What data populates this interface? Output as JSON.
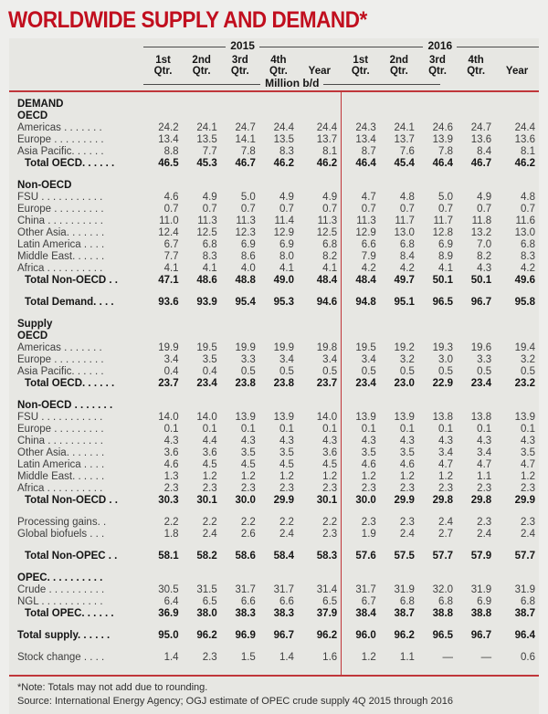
{
  "title": "WORLDWIDE SUPPLY AND DEMAND*",
  "colors": {
    "accent_red_lines": "#c0363a",
    "accent_red_title": "#c10e1e",
    "panel_background": "#e7e7e3",
    "page_background": "#eeeeec"
  },
  "table": {
    "unit": "Million b/d",
    "year_groups": [
      {
        "label": "2015"
      },
      {
        "label": "2016"
      }
    ],
    "col_headers": [
      {
        "top": "1st",
        "bottom": "Qtr."
      },
      {
        "top": "2nd",
        "bottom": "Qtr."
      },
      {
        "top": "3rd",
        "bottom": "Qtr."
      },
      {
        "top": "4th",
        "bottom": "Qtr."
      },
      {
        "top": "",
        "bottom": "Year"
      }
    ],
    "rows": [
      {
        "type": "section",
        "label": "DEMAND",
        "first": true
      },
      {
        "type": "section",
        "label": "OECD"
      },
      {
        "type": "row",
        "label": "Americas . . . . . . .",
        "values": [
          "24.2",
          "24.1",
          "24.7",
          "24.4",
          "24.4",
          "24.3",
          "24.1",
          "24.6",
          "24.7",
          "24.4"
        ]
      },
      {
        "type": "row",
        "label": "Europe . . . . . . . . .",
        "values": [
          "13.4",
          "13.5",
          "14.1",
          "13.5",
          "13.7",
          "13.4",
          "13.7",
          "13.9",
          "13.6",
          "13.6"
        ]
      },
      {
        "type": "row",
        "label": "Asia Pacific. . . . . .",
        "values": [
          "8.8",
          "7.7",
          "7.8",
          "8.3",
          "8.1",
          "8.7",
          "7.6",
          "7.8",
          "8.4",
          "8.1"
        ]
      },
      {
        "type": "total",
        "indent": true,
        "label": "Total OECD. . . . . .",
        "values": [
          "46.5",
          "45.3",
          "46.7",
          "46.2",
          "46.2",
          "46.4",
          "45.4",
          "46.4",
          "46.7",
          "46.2"
        ]
      },
      {
        "type": "spacer"
      },
      {
        "type": "section",
        "label": "Non-OECD"
      },
      {
        "type": "row",
        "label": "FSU . . . . . . . . . . .",
        "values": [
          "4.6",
          "4.9",
          "5.0",
          "4.9",
          "4.9",
          "4.7",
          "4.8",
          "5.0",
          "4.9",
          "4.8"
        ]
      },
      {
        "type": "row",
        "label": "Europe . . . . . . . . .",
        "values": [
          "0.7",
          "0.7",
          "0.7",
          "0.7",
          "0.7",
          "0.7",
          "0.7",
          "0.7",
          "0.7",
          "0.7"
        ]
      },
      {
        "type": "row",
        "label": "China . . . . . . . . . .",
        "values": [
          "11.0",
          "11.3",
          "11.3",
          "11.4",
          "11.3",
          "11.3",
          "11.7",
          "11.7",
          "11.8",
          "11.6"
        ]
      },
      {
        "type": "row",
        "label": "Other Asia. . . . . . .",
        "values": [
          "12.4",
          "12.5",
          "12.3",
          "12.9",
          "12.5",
          "12.9",
          "13.0",
          "12.8",
          "13.2",
          "13.0"
        ]
      },
      {
        "type": "row",
        "label": "Latin America . . . .",
        "values": [
          "6.7",
          "6.8",
          "6.9",
          "6.9",
          "6.8",
          "6.6",
          "6.8",
          "6.9",
          "7.0",
          "6.8"
        ]
      },
      {
        "type": "row",
        "label": "Middle East. . . . . .",
        "values": [
          "7.7",
          "8.3",
          "8.6",
          "8.0",
          "8.2",
          "7.9",
          "8.4",
          "8.9",
          "8.2",
          "8.3"
        ]
      },
      {
        "type": "row",
        "label": "Africa . . . . . . . . . .",
        "values": [
          "4.1",
          "4.1",
          "4.0",
          "4.1",
          "4.1",
          "4.2",
          "4.2",
          "4.1",
          "4.3",
          "4.2"
        ]
      },
      {
        "type": "total",
        "indent": true,
        "label": "Total Non-OECD . .",
        "values": [
          "47.1",
          "48.6",
          "48.8",
          "49.0",
          "48.4",
          "48.4",
          "49.7",
          "50.1",
          "50.1",
          "49.6"
        ]
      },
      {
        "type": "spacer"
      },
      {
        "type": "total",
        "indent": true,
        "label": "Total Demand. . . .",
        "values": [
          "93.6",
          "93.9",
          "95.4",
          "95.3",
          "94.6",
          "94.8",
          "95.1",
          "96.5",
          "96.7",
          "95.8"
        ]
      },
      {
        "type": "spacer"
      },
      {
        "type": "section",
        "label": "Supply"
      },
      {
        "type": "section",
        "label": "OECD"
      },
      {
        "type": "row",
        "label": "Americas . . . . . . .",
        "values": [
          "19.9",
          "19.5",
          "19.9",
          "19.9",
          "19.8",
          "19.5",
          "19.2",
          "19.3",
          "19.6",
          "19.4"
        ]
      },
      {
        "type": "row",
        "label": "Europe . . . . . . . . .",
        "values": [
          "3.4",
          "3.5",
          "3.3",
          "3.4",
          "3.4",
          "3.4",
          "3.2",
          "3.0",
          "3.3",
          "3.2"
        ]
      },
      {
        "type": "row",
        "label": "Asia Pacific. . . . . .",
        "values": [
          "0.4",
          "0.4",
          "0.5",
          "0.5",
          "0.5",
          "0.5",
          "0.5",
          "0.5",
          "0.5",
          "0.5"
        ]
      },
      {
        "type": "total",
        "indent": true,
        "label": "Total OECD. . . . . .",
        "values": [
          "23.7",
          "23.4",
          "23.8",
          "23.8",
          "23.7",
          "23.4",
          "23.0",
          "22.9",
          "23.4",
          "23.2"
        ]
      },
      {
        "type": "spacer"
      },
      {
        "type": "section",
        "label": "Non-OECD . . . . . . ."
      },
      {
        "type": "row",
        "label": "FSU . . . . . . . . . . .",
        "values": [
          "14.0",
          "14.0",
          "13.9",
          "13.9",
          "14.0",
          "13.9",
          "13.9",
          "13.8",
          "13.8",
          "13.9"
        ]
      },
      {
        "type": "row",
        "label": "Europe . . . . . . . . .",
        "values": [
          "0.1",
          "0.1",
          "0.1",
          "0.1",
          "0.1",
          "0.1",
          "0.1",
          "0.1",
          "0.1",
          "0.1"
        ]
      },
      {
        "type": "row",
        "label": "China . . . . . . . . . .",
        "values": [
          "4.3",
          "4.4",
          "4.3",
          "4.3",
          "4.3",
          "4.3",
          "4.3",
          "4.3",
          "4.3",
          "4.3"
        ]
      },
      {
        "type": "row",
        "label": "Other Asia. . . . . . .",
        "values": [
          "3.6",
          "3.6",
          "3.5",
          "3.5",
          "3.6",
          "3.5",
          "3.5",
          "3.4",
          "3.4",
          "3.5"
        ]
      },
      {
        "type": "row",
        "label": "Latin America . . . .",
        "values": [
          "4.6",
          "4.5",
          "4.5",
          "4.5",
          "4.5",
          "4.6",
          "4.6",
          "4.7",
          "4.7",
          "4.7"
        ]
      },
      {
        "type": "row",
        "label": "Middle East. . . . . .",
        "values": [
          "1.3",
          "1.2",
          "1.2",
          "1.2",
          "1.2",
          "1.2",
          "1.2",
          "1.2",
          "1.1",
          "1.2"
        ]
      },
      {
        "type": "row",
        "label": "Africa . . . . . . . . . .",
        "values": [
          "2.3",
          "2.3",
          "2.3",
          "2.3",
          "2.3",
          "2.3",
          "2.3",
          "2.3",
          "2.3",
          "2.3"
        ]
      },
      {
        "type": "total",
        "indent": true,
        "label": "Total Non-OECD . .",
        "values": [
          "30.3",
          "30.1",
          "30.0",
          "29.9",
          "30.1",
          "30.0",
          "29.9",
          "29.8",
          "29.8",
          "29.9"
        ]
      },
      {
        "type": "spacer"
      },
      {
        "type": "row",
        "label": "Processing gains. .",
        "values": [
          "2.2",
          "2.2",
          "2.2",
          "2.2",
          "2.2",
          "2.3",
          "2.3",
          "2.4",
          "2.3",
          "2.3"
        ]
      },
      {
        "type": "row",
        "label": "Global biofuels . . .",
        "values": [
          "1.8",
          "2.4",
          "2.6",
          "2.4",
          "2.3",
          "1.9",
          "2.4",
          "2.7",
          "2.4",
          "2.4"
        ]
      },
      {
        "type": "spacer"
      },
      {
        "type": "total",
        "indent": true,
        "label": "Total Non-OPEC . .",
        "values": [
          "58.1",
          "58.2",
          "58.6",
          "58.4",
          "58.3",
          "57.6",
          "57.5",
          "57.7",
          "57.9",
          "57.7"
        ]
      },
      {
        "type": "spacer"
      },
      {
        "type": "section",
        "label": "OPEC. . . . . . . . . ."
      },
      {
        "type": "row",
        "label": "Crude . . . . . . . . . .",
        "values": [
          "30.5",
          "31.5",
          "31.7",
          "31.7",
          "31.4",
          "31.7",
          "31.9",
          "32.0",
          "31.9",
          "31.9"
        ]
      },
      {
        "type": "row",
        "label": "NGL . . . . . . . . . . .",
        "values": [
          "6.4",
          "6.5",
          "6.6",
          "6.6",
          "6.5",
          "6.7",
          "6.8",
          "6.8",
          "6.9",
          "6.8"
        ]
      },
      {
        "type": "total",
        "indent": true,
        "label": "Total OPEC. . . . . .",
        "values": [
          "36.9",
          "38.0",
          "38.3",
          "38.3",
          "37.9",
          "38.4",
          "38.7",
          "38.8",
          "38.8",
          "38.7"
        ]
      },
      {
        "type": "spacer"
      },
      {
        "type": "total",
        "indent": false,
        "label": "Total supply. . . . . .",
        "values": [
          "95.0",
          "96.2",
          "96.9",
          "96.7",
          "96.2",
          "96.0",
          "96.2",
          "96.5",
          "96.7",
          "96.4"
        ]
      },
      {
        "type": "spacer"
      },
      {
        "type": "row",
        "label": "Stock change . . . .",
        "values": [
          "1.4",
          "2.3",
          "1.5",
          "1.4",
          "1.6",
          "1.2",
          "1.1",
          "—",
          "—",
          "0.6"
        ]
      },
      {
        "type": "spacer-end"
      }
    ]
  },
  "footnotes": [
    "*Note: Totals may not add due to rounding.",
    "Source: International Energy Agency; OGJ estimate of OPEC crude supply 4Q 2015 through 2016"
  ]
}
